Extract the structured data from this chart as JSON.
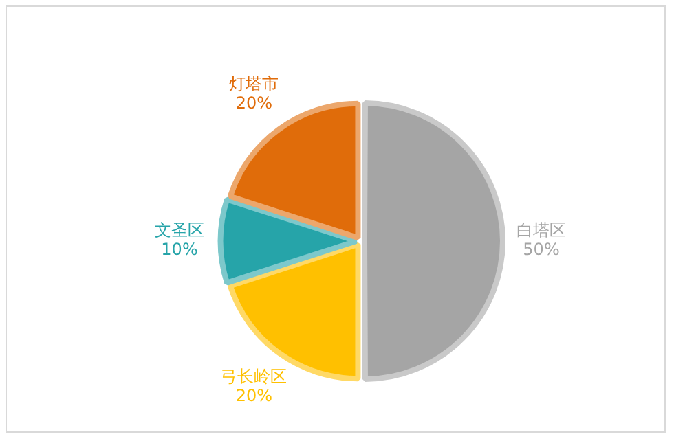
{
  "chart_data": {
    "type": "pie",
    "categories": [
      "白塔区",
      "弓长岭区",
      "文圣区",
      "灯塔市"
    ],
    "values": [
      50,
      20,
      10,
      20
    ],
    "value_labels": [
      "50%",
      "20%",
      "10%",
      "20%"
    ],
    "colors": [
      "#a5a5a5",
      "#ffc000",
      "#26a4a9",
      "#e06c0a"
    ],
    "legend": false
  }
}
